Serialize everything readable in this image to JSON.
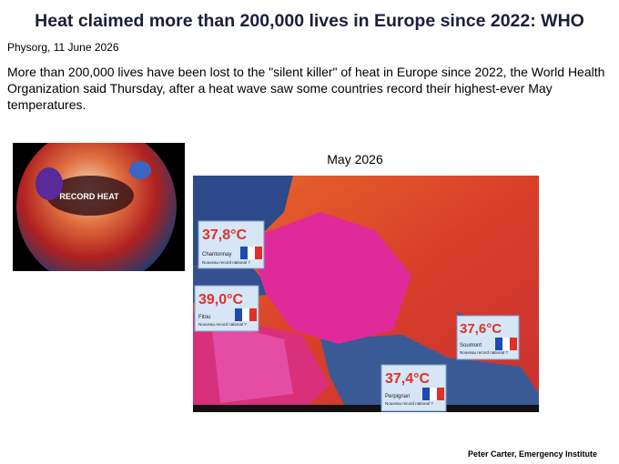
{
  "header": {
    "title": "Heat claimed more than 200,000 lives in Europe since 2022: WHO",
    "source": "Physorg, 11 June 2026"
  },
  "body": {
    "text": "More than 200,000 lives have been lost to the \"silent killer\" of heat in Europe since 2022, the World Health Organization said Thursday, after a heat wave saw some countries record their highest-ever May temperatures."
  },
  "figures": {
    "globe": {
      "label": "RECORD HEAT"
    },
    "map": {
      "caption": "May 2026",
      "callouts": [
        {
          "temperature": "37,8°C",
          "place": "Chantonnay",
          "note": "Nouveau record national ?"
        },
        {
          "temperature": "39,0°C",
          "place": "Fitou",
          "note": "Nouveau record national ?"
        },
        {
          "temperature": "37,6°C",
          "place": "Soumont",
          "note": "Nouveau record national ?"
        },
        {
          "temperature": "37,4°C",
          "place": "Perpignan",
          "note": "Nouveau record national ?"
        }
      ]
    }
  },
  "footer": {
    "credit": "Peter Carter, Emergency Institute"
  }
}
